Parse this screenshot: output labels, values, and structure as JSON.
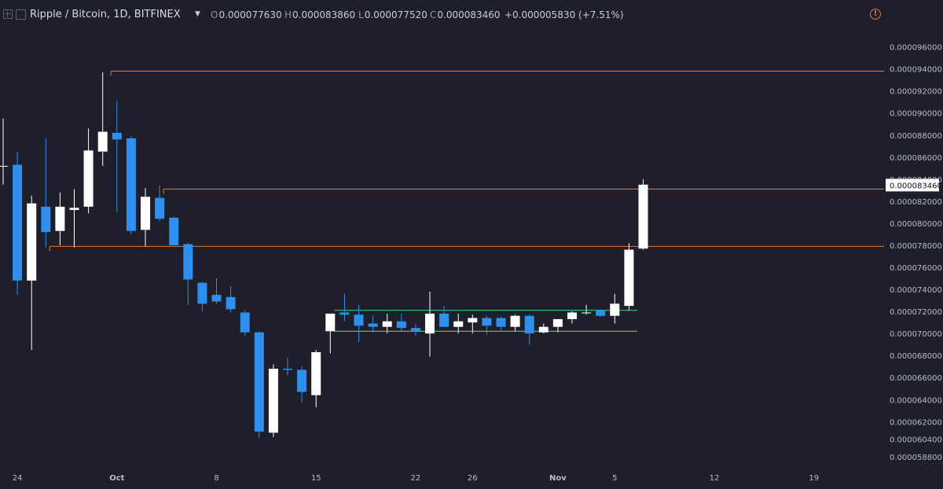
{
  "header": {
    "title": "Ripple / Bitcoin, 1D, BITFINEX",
    "open_label": "O",
    "open": "0.000077630",
    "high_label": "H",
    "high": "0.000083860",
    "low_label": "L",
    "low": "0.000077520",
    "close_label": "C",
    "close": "0.000083460",
    "change": "+0.000005830 (+7.51%)"
  },
  "colors": {
    "background": "#1e1f2b",
    "bull": "#ffffff",
    "bear": "#2d8ff0",
    "level_line": "#e07b39",
    "channel": "#2ecc71",
    "axis_text": "#b8bcc8"
  },
  "chart_data": {
    "type": "candlestick",
    "title": "Ripple / Bitcoin, 1D, BITFINEX",
    "ylim": [
      5.76e-05,
      9.74e-05
    ],
    "y_ticks": [
      "0.000096000",
      "0.000094000",
      "0.000092000",
      "0.000090000",
      "0.000088000",
      "0.000086000",
      "0.000084000",
      "0.000082000",
      "0.000080000",
      "0.000078000",
      "0.000076000",
      "0.000074000",
      "0.000072000",
      "0.000070000",
      "0.000068000",
      "0.000066000",
      "0.000064000",
      "0.000062000",
      "0.000060400",
      "0.000058800"
    ],
    "x_ticks": [
      {
        "label": "24",
        "i": 1
      },
      {
        "label": "Oct",
        "i": 8
      },
      {
        "label": "8",
        "i": 15
      },
      {
        "label": "15",
        "i": 22
      },
      {
        "label": "22",
        "i": 29
      },
      {
        "label": "26",
        "i": 33
      },
      {
        "label": "Nov",
        "i": 39
      },
      {
        "label": "5",
        "i": 43
      },
      {
        "label": "12",
        "i": 50
      },
      {
        "label": "19",
        "i": 57
      }
    ],
    "last_price_label": "0.000083460",
    "candles": [
      {
        "o": 8.52e-05,
        "h": 8.95e-05,
        "l": 8.35e-05,
        "c": 8.52e-05
      },
      {
        "o": 8.53e-05,
        "h": 8.65e-05,
        "l": 7.35e-05,
        "c": 7.48e-05
      },
      {
        "o": 7.48e-05,
        "h": 8.25e-05,
        "l": 6.85e-05,
        "c": 8.18e-05
      },
      {
        "o": 8.15e-05,
        "h": 8.77e-05,
        "l": 7.78e-05,
        "c": 7.92e-05
      },
      {
        "o": 7.93e-05,
        "h": 8.28e-05,
        "l": 7.8e-05,
        "c": 8.15e-05
      },
      {
        "o": 8.12e-05,
        "h": 8.31e-05,
        "l": 7.78e-05,
        "c": 8.14e-05
      },
      {
        "o": 8.15e-05,
        "h": 8.86e-05,
        "l": 8.09e-05,
        "c": 8.66e-05
      },
      {
        "o": 8.65e-05,
        "h": 9.37e-05,
        "l": 8.52e-05,
        "c": 8.83e-05
      },
      {
        "o": 8.82e-05,
        "h": 9.11e-05,
        "l": 8.1e-05,
        "c": 8.76e-05
      },
      {
        "o": 8.77e-05,
        "h": 8.79e-05,
        "l": 7.9e-05,
        "c": 7.93e-05
      },
      {
        "o": 7.94e-05,
        "h": 8.32e-05,
        "l": 7.79e-05,
        "c": 8.24e-05
      },
      {
        "o": 8.23e-05,
        "h": 8.34e-05,
        "l": 8.02e-05,
        "c": 8.04e-05
      },
      {
        "o": 8.05e-05,
        "h": 8.06e-05,
        "l": 7.8e-05,
        "c": 7.8e-05
      },
      {
        "o": 7.81e-05,
        "h": 7.82e-05,
        "l": 7.26e-05,
        "c": 7.49e-05
      },
      {
        "o": 7.46e-05,
        "h": 7.47e-05,
        "l": 7.2e-05,
        "c": 7.27e-05
      },
      {
        "o": 7.35e-05,
        "h": 7.5e-05,
        "l": 7.27e-05,
        "c": 7.29e-05
      },
      {
        "o": 7.33e-05,
        "h": 7.43e-05,
        "l": 7.19e-05,
        "c": 7.22e-05
      },
      {
        "o": 7.19e-05,
        "h": 7.21e-05,
        "l": 6.98e-05,
        "c": 7.01e-05
      },
      {
        "o": 7.01e-05,
        "h": 7.02e-05,
        "l": 6.05e-05,
        "c": 6.11e-05
      },
      {
        "o": 6.1e-05,
        "h": 6.72e-05,
        "l": 6.06e-05,
        "c": 6.68e-05
      },
      {
        "o": 6.68e-05,
        "h": 6.78e-05,
        "l": 6.62e-05,
        "c": 6.67e-05
      },
      {
        "o": 6.67e-05,
        "h": 6.7e-05,
        "l": 6.37e-05,
        "c": 6.47e-05
      },
      {
        "o": 6.44e-05,
        "h": 6.85e-05,
        "l": 6.33e-05,
        "c": 6.83e-05
      },
      {
        "o": 7.02e-05,
        "h": 7.18e-05,
        "l": 6.82e-05,
        "c": 7.18e-05
      },
      {
        "o": 7.19e-05,
        "h": 7.36e-05,
        "l": 7.11e-05,
        "c": 7.17e-05
      },
      {
        "o": 7.17e-05,
        "h": 7.26e-05,
        "l": 6.92e-05,
        "c": 7.07e-05
      },
      {
        "o": 7.09e-05,
        "h": 7.16e-05,
        "l": 7.01e-05,
        "c": 7.06e-05
      },
      {
        "o": 7.06e-05,
        "h": 7.18e-05,
        "l": 7e-05,
        "c": 7.11e-05
      },
      {
        "o": 7.11e-05,
        "h": 7.18e-05,
        "l": 7.02e-05,
        "c": 7.05e-05
      },
      {
        "o": 7.05e-05,
        "h": 7.09e-05,
        "l": 6.98e-05,
        "c": 7.02e-05
      },
      {
        "o": 7e-05,
        "h": 7.38e-05,
        "l": 6.79e-05,
        "c": 7.18e-05
      },
      {
        "o": 7.18e-05,
        "h": 7.25e-05,
        "l": 7.06e-05,
        "c": 7.06e-05
      },
      {
        "o": 7.06e-05,
        "h": 7.18e-05,
        "l": 7e-05,
        "c": 7.11e-05
      },
      {
        "o": 7.1e-05,
        "h": 7.17e-05,
        "l": 7e-05,
        "c": 7.14e-05
      },
      {
        "o": 7.14e-05,
        "h": 7.16e-05,
        "l": 6.99e-05,
        "c": 7.07e-05
      },
      {
        "o": 7.14e-05,
        "h": 7.15e-05,
        "l": 7.03e-05,
        "c": 7.06e-05
      },
      {
        "o": 7.06e-05,
        "h": 7.17e-05,
        "l": 7.02e-05,
        "c": 7.16e-05
      },
      {
        "o": 7.16e-05,
        "h": 7.17e-05,
        "l": 6.9e-05,
        "c": 7e-05
      },
      {
        "o": 7.01e-05,
        "h": 7.09e-05,
        "l": 7e-05,
        "c": 7.06e-05
      },
      {
        "o": 7.06e-05,
        "h": 7.13e-05,
        "l": 7.01e-05,
        "c": 7.13e-05
      },
      {
        "o": 7.13e-05,
        "h": 7.2e-05,
        "l": 7.09e-05,
        "c": 7.19e-05
      },
      {
        "o": 7.19e-05,
        "h": 7.26e-05,
        "l": 7.17e-05,
        "c": 7.19e-05
      },
      {
        "o": 7.21e-05,
        "h": 7.22e-05,
        "l": 7.15e-05,
        "c": 7.16e-05
      },
      {
        "o": 7.16e-05,
        "h": 7.36e-05,
        "l": 7.09e-05,
        "c": 7.27e-05
      },
      {
        "o": 7.25e-05,
        "h": 7.82e-05,
        "l": 7.21e-05,
        "c": 7.76e-05
      },
      {
        "o": 7.77e-05,
        "h": 8.4e-05,
        "l": 7.76e-05,
        "c": 8.35e-05
      }
    ],
    "hlines": [
      {
        "y": 9.38e-05,
        "from_i": 7.8
      },
      {
        "y": 8.31e-05,
        "from_i": 11.5
      },
      {
        "y": 7.79e-05,
        "from_i": 3.5
      }
    ],
    "channel": [
      {
        "y": 7.21e-05,
        "from_i": 23.5,
        "to_i": 44.8
      },
      {
        "y": 7.02e-05,
        "from_i": 23.5,
        "to_i": 44.8
      }
    ],
    "grid": false
  }
}
